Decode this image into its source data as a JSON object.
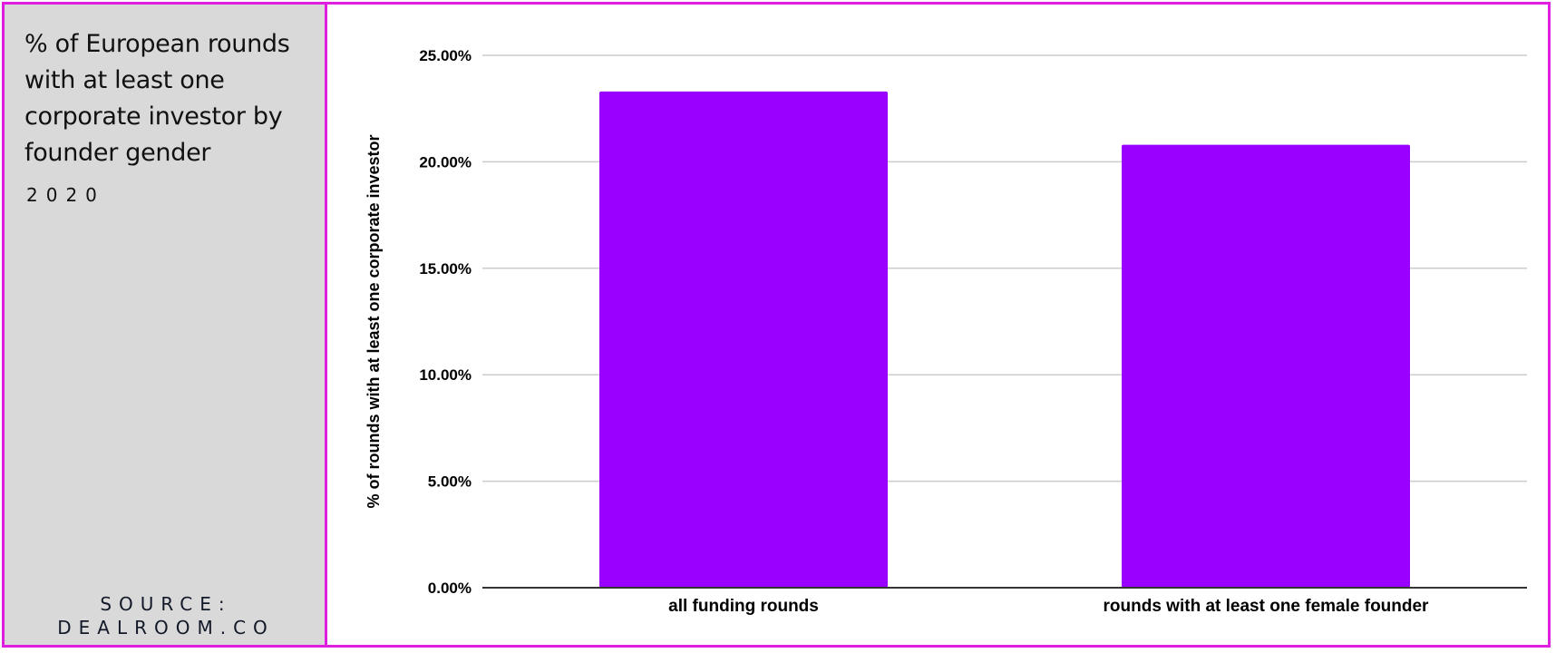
{
  "sidebar": {
    "title": "% of European rounds with at least one corporate investor by founder gender",
    "year": "2020",
    "source_line1": "SOURCE:",
    "source_line2": "DEALROOM.CO"
  },
  "colors": {
    "bar": "#9900ff",
    "border": "#e01ee0",
    "sidebar_bg": "#d9d9d9",
    "grid": "#cccccc",
    "axis": "#333333"
  },
  "chart_data": {
    "type": "bar",
    "categories": [
      "all funding rounds",
      "rounds with at least one female founder"
    ],
    "values": [
      23.3,
      20.8
    ],
    "ylabel": "% of rounds with at least one corporate investor",
    "ylim": [
      0,
      25
    ],
    "yticks": [
      0,
      5,
      10,
      15,
      20,
      25
    ],
    "ytick_labels": [
      "0.00%",
      "5.00%",
      "10.00%",
      "15.00%",
      "20.00%",
      "25.00%"
    ],
    "grid": true,
    "legend": "none"
  }
}
